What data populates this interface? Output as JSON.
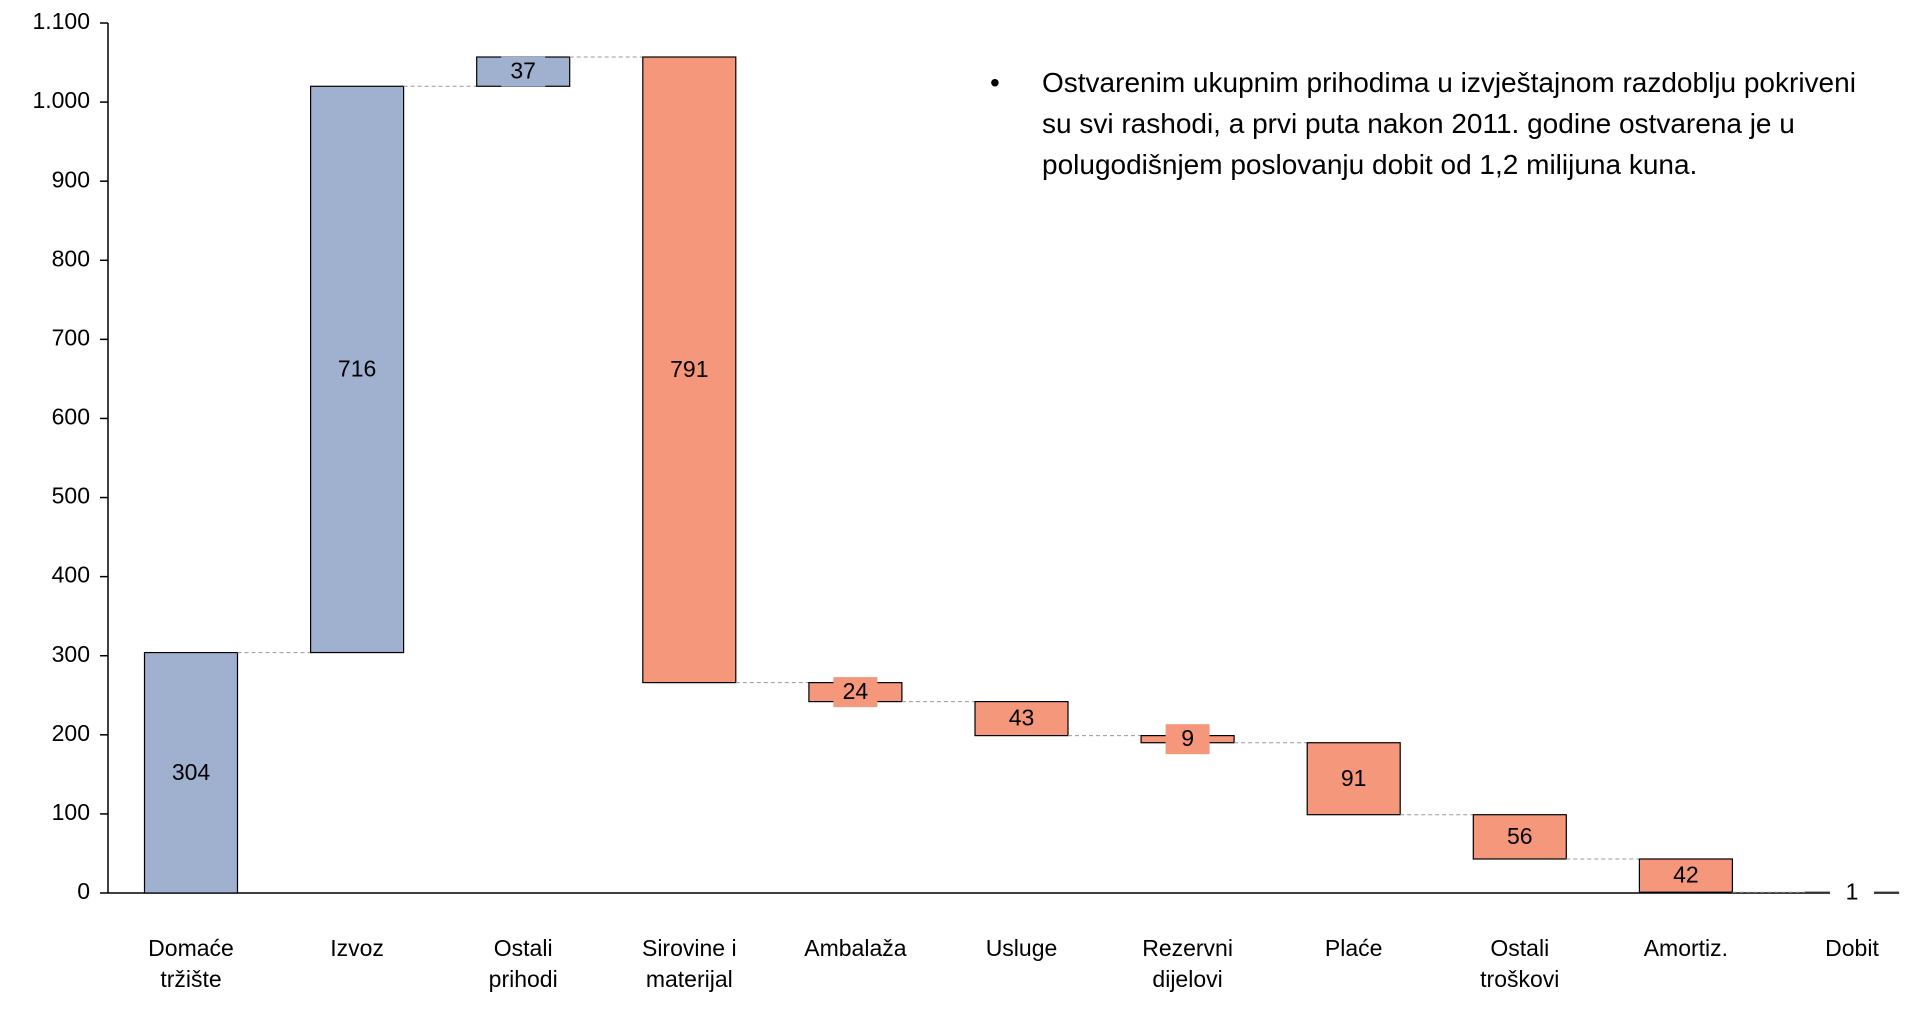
{
  "chart_data": {
    "type": "waterfall",
    "categories": [
      "Domaće\ntržište",
      "Izvoz",
      "Ostali\nprihodi",
      "Sirovine i\nmaterijal",
      "Ambalaža",
      "Usluge",
      "Rezervni\ndijelovi",
      "Plaće",
      "Ostali\ntroškovi",
      "Amortiz.",
      "Dobit"
    ],
    "values": [
      304,
      716,
      37,
      791,
      24,
      43,
      9,
      91,
      56,
      42,
      1
    ],
    "kinds": [
      "increase",
      "increase",
      "increase",
      "decrease",
      "decrease",
      "decrease",
      "decrease",
      "decrease",
      "decrease",
      "decrease",
      "total"
    ],
    "colors": {
      "increase": "#9fb1cf",
      "decrease": "#f4977a",
      "total": "#333333"
    },
    "ylim": [
      0,
      1100
    ],
    "yticks": [
      0,
      100,
      200,
      300,
      400,
      500,
      600,
      700,
      800,
      900,
      {
        "value": 1000,
        "label": "1.000"
      },
      {
        "value": 1100,
        "label": "1.100"
      }
    ],
    "annotation": "Ostvarenim ukupnim prihodima u izvještajnom razdoblju pokriveni su svi rashodi, a prvi puta nakon 2011. godine ostvarena je u polugodišnjem poslovanju dobit od 1,2 milijuna kuna."
  }
}
